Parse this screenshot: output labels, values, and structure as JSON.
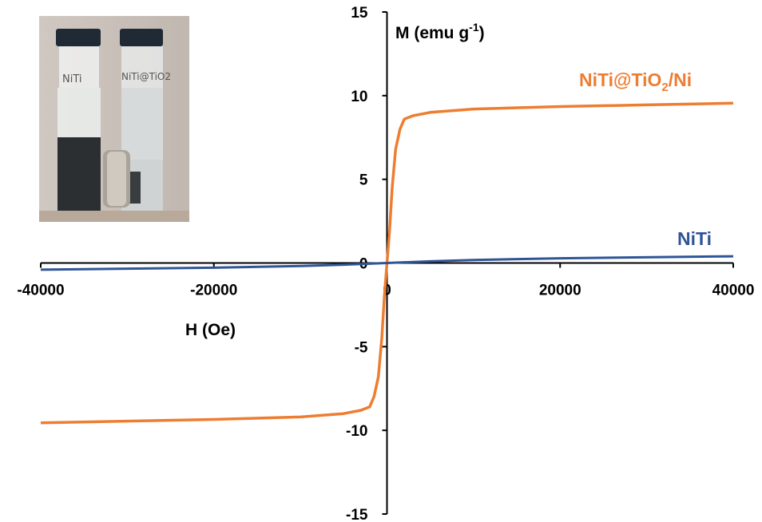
{
  "chart_data": {
    "type": "line",
    "xlabel": "H (Oe)",
    "ylabel": {
      "base": "M (emu g",
      "sup": "-1",
      "close": ")"
    },
    "xlim": [
      -40000,
      40000
    ],
    "ylim": [
      -15,
      15
    ],
    "xticks": [
      -40000,
      -20000,
      0,
      20000,
      40000
    ],
    "xtick_labels": [
      "-40000",
      "-20000",
      "0",
      "20000",
      "40000"
    ],
    "yticks": [
      -15,
      -10,
      -5,
      0,
      5,
      10,
      15
    ],
    "ytick_labels": [
      "-15",
      "-10",
      "-5",
      "0",
      "5",
      "10",
      "15"
    ],
    "grid": false,
    "inset": "photo of two vials labeled NiTi and NiTi@TiO2 with a magnet",
    "series": [
      {
        "name": "NiTi@TiO2/Ni",
        "label_parts": {
          "a": "NiTi@TiO",
          "sub": "2",
          "b": "/Ni"
        },
        "color": "#ED7D31",
        "x": [
          -40000,
          -30000,
          -20000,
          -10000,
          -5000,
          -3000,
          -2000,
          -1500,
          -1000,
          -600,
          -300,
          0,
          300,
          600,
          1000,
          1500,
          2000,
          3000,
          5000,
          10000,
          20000,
          30000,
          40000
        ],
        "y": [
          -9.55,
          -9.45,
          -9.35,
          -9.2,
          -9.0,
          -8.8,
          -8.6,
          -8.0,
          -6.8,
          -4.5,
          -2.0,
          0,
          2.0,
          4.5,
          6.8,
          8.0,
          8.6,
          8.8,
          9.0,
          9.2,
          9.35,
          9.45,
          9.55
        ]
      },
      {
        "name": "NiTi",
        "color": "#2F5597",
        "x": [
          -40000,
          -20000,
          -10000,
          -5000,
          0,
          5000,
          10000,
          20000,
          40000
        ],
        "y": [
          -0.4,
          -0.28,
          -0.18,
          -0.1,
          0,
          0.1,
          0.18,
          0.28,
          0.4
        ]
      }
    ]
  },
  "inset_photo": {
    "vial_left_label": "NiTi",
    "vial_right_label": "NiTi@TiO2"
  }
}
